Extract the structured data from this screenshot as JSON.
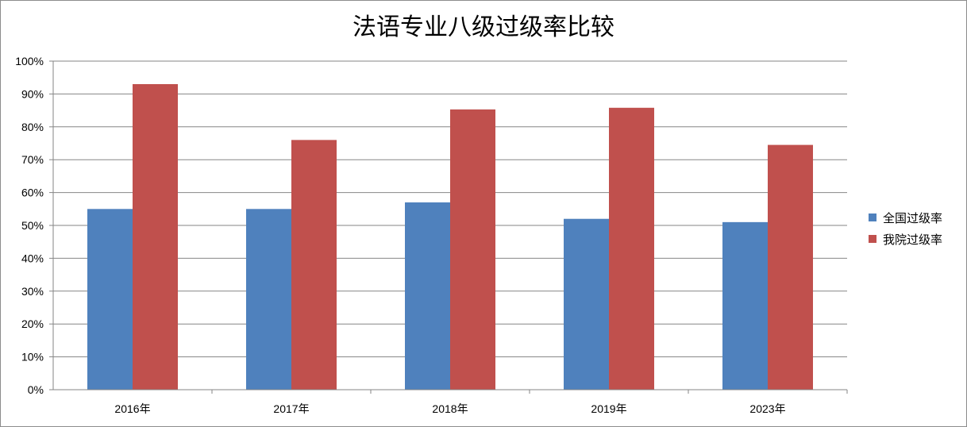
{
  "chart_data": {
    "type": "bar",
    "title": "法语专业八级过级率比较",
    "xlabel": "",
    "ylabel": "",
    "categories": [
      "2016年",
      "2017年",
      "2018年",
      "2019年",
      "2023年"
    ],
    "series": [
      {
        "name": "全国过级率",
        "color": "#4f81bd",
        "values": [
          55,
          55,
          57,
          52,
          51
        ]
      },
      {
        "name": "我院过级率",
        "color": "#c0504d",
        "values": [
          93,
          76,
          85.3,
          85.8,
          74.5
        ]
      }
    ],
    "ylim": [
      0,
      100
    ],
    "yticks": [
      "0%",
      "10%",
      "20%",
      "30%",
      "40%",
      "50%",
      "60%",
      "70%",
      "80%",
      "90%",
      "100%"
    ],
    "grid": true,
    "legend_position": "right"
  }
}
